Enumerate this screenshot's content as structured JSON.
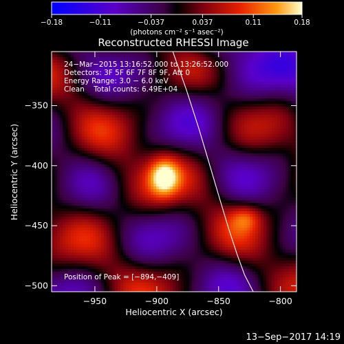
{
  "chart_data": {
    "type": "heatmap",
    "title": "Reconstructed RHESSI Image",
    "xlabel": "Heliocentric X (arcsec)",
    "ylabel": "Heliocentric Y (arcsec)",
    "xlim": [
      -985,
      -787
    ],
    "ylim": [
      -505,
      -305
    ],
    "x_ticks": [
      -950,
      -900,
      -850,
      -800
    ],
    "y_ticks": [
      -350,
      -400,
      -450,
      -500
    ],
    "x_tick_labels": [
      "−950",
      "−900",
      "−850",
      "−800"
    ],
    "y_tick_labels": [
      "−350",
      "−400",
      "−450",
      "−500"
    ],
    "colorbar": {
      "range": [
        -0.18,
        0.18
      ],
      "ticks": [
        -0.18,
        -0.11,
        -0.037,
        0.037,
        0.11,
        0.18
      ],
      "tick_labels": [
        "−0.18",
        "−0.11",
        "−0.037",
        "0.037",
        "0.11",
        "0.18"
      ],
      "units_label": "(photons cm⁻² s⁻¹ asec⁻²)"
    },
    "peak": {
      "x": -894,
      "y": -409,
      "value": 0.18
    },
    "annotations": [
      "24−Mar−2015 13:16:52.000 to 13:26:52.000",
      "Detectors: 3F 5F 6F 7F 8F 9F, Att 0",
      "Energy Range: 3.0 − 6.0 keV",
      "Clean    Total counts: 6.49E+04"
    ],
    "peak_label": "Position of Peak = [−894,−409]",
    "limb_line": {
      "x": [
        -887,
        -876,
        -866,
        -857,
        -849,
        -842,
        -835,
        -829,
        -822
      ],
      "y": [
        -305,
        -337,
        -369,
        -400,
        -428,
        -452,
        -474,
        -491,
        -505
      ]
    }
  },
  "footer": {
    "date": "13−Sep−2017 14:19"
  }
}
